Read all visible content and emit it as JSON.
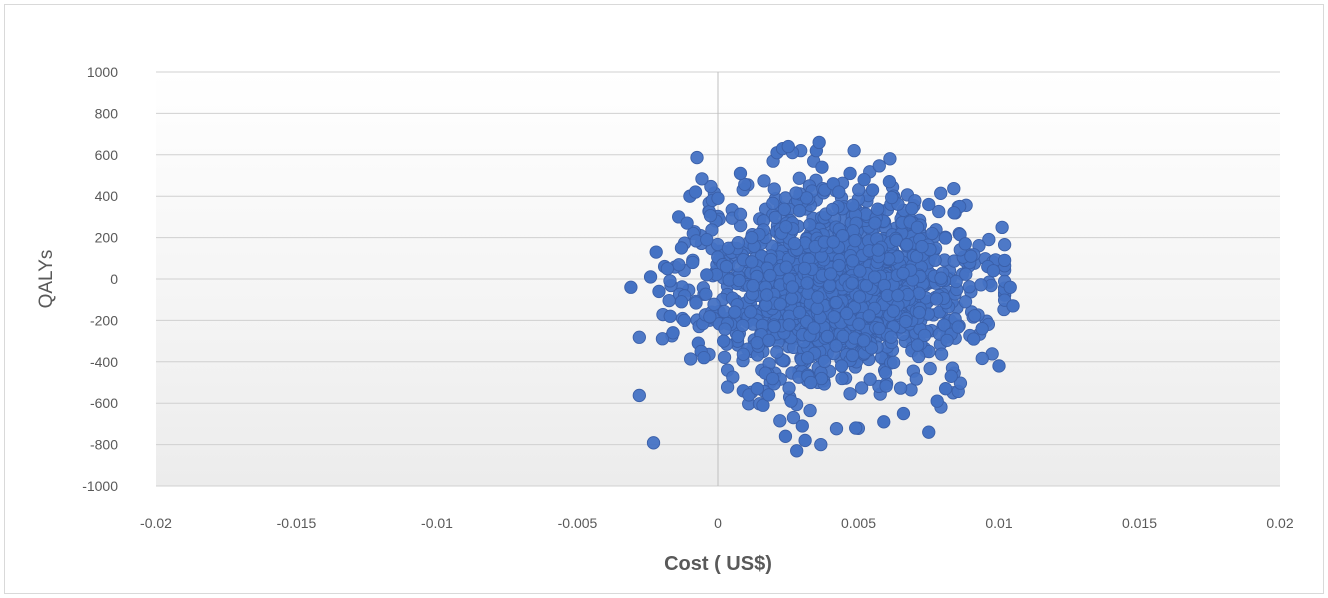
{
  "chart_data": {
    "type": "scatter",
    "title": "",
    "xlabel": "Cost ( US$)",
    "ylabel": "QALYs",
    "xlim": [
      -0.02,
      0.02
    ],
    "ylim": [
      -1000,
      1000
    ],
    "x_ticks": [
      "-0.02",
      "-0.015",
      "-0.01",
      "-0.005",
      "0",
      "0.005",
      "0.01",
      "0.015",
      "0.02"
    ],
    "y_ticks": [
      "1000",
      "800",
      "600",
      "400",
      "200",
      "0",
      "-200",
      "-400",
      "-600",
      "-800",
      "-1000"
    ],
    "grid": true,
    "legend": "none",
    "marker_color": "#4472c4",
    "series": [
      {
        "x": [
          -0.0031,
          -0.0024,
          -0.0022,
          -0.0021,
          -0.0019,
          -0.0017,
          -0.0016,
          -0.0014,
          -0.0013,
          -0.0012,
          -0.0011,
          -0.001,
          -0.0009,
          -0.0008,
          -0.0007,
          -0.0006,
          -0.0005,
          -0.0004,
          -0.0002,
          0.0,
          0.0002,
          0.0003,
          0.0008,
          0.0009,
          0.0011,
          0.0014,
          0.0016,
          0.0018,
          0.0021,
          0.0023,
          0.0024,
          0.0025,
          0.0026,
          0.0028,
          0.003,
          0.0031,
          0.0033,
          0.0035,
          0.0036,
          0.0037,
          0.0038,
          0.0041,
          0.0043,
          0.0047,
          0.0049,
          0.0052,
          0.0055,
          0.0059,
          0.0061,
          0.0066,
          0.0069,
          0.0072,
          0.0075,
          0.0075,
          0.0078,
          0.0081,
          0.0083,
          0.0086,
          0.0088,
          0.0091,
          0.0094,
          0.0096,
          0.0098,
          0.01,
          0.0102,
          0.0104,
          0.0105,
          0.009,
          0.0084,
          0.0071,
          -0.0018,
          -0.0013,
          -0.0004,
          0.0006,
          0.0012,
          0.002,
          0.0029,
          0.0044,
          0.0057,
          0.0064
        ],
        "y": [
          -40,
          10,
          130,
          -60,
          60,
          -180,
          -260,
          300,
          150,
          -200,
          270,
          400,
          80,
          420,
          -310,
          -350,
          -380,
          190,
          380,
          390,
          -300,
          60,
          510,
          -540,
          -560,
          -530,
          -610,
          -560,
          610,
          630,
          -760,
          640,
          -590,
          -830,
          -710,
          -780,
          -500,
          620,
          660,
          540,
          430,
          460,
          420,
          510,
          -720,
          480,
          430,
          -690,
          470,
          -650,
          340,
          260,
          360,
          -740,
          -590,
          -530,
          -470,
          350,
          170,
          -290,
          -240,
          60,
          40,
          -420,
          90,
          -40,
          -130,
          110,
          320,
          250,
          50,
          -110,
          20,
          -160,
          200,
          -230,
          330,
          -420,
          140,
          -80
        ]
      }
    ]
  }
}
